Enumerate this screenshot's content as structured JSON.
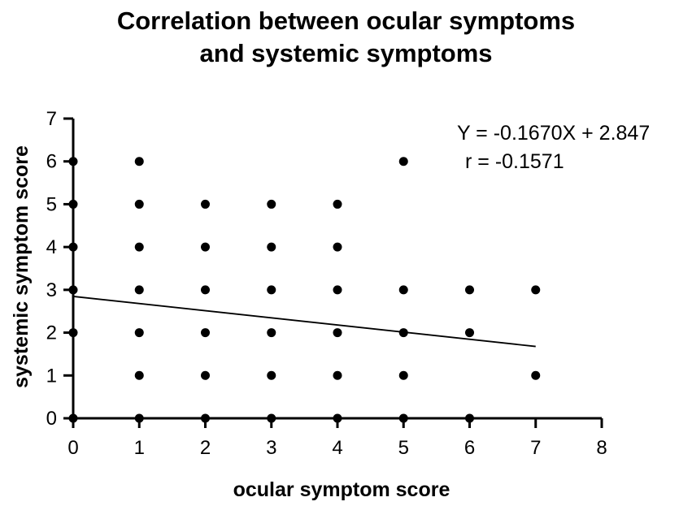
{
  "chart_data": {
    "type": "scatter",
    "title_lines": [
      "Correlation between ocular symptoms",
      "and systemic symptoms"
    ],
    "xlabel": "ocular  symptom score",
    "ylabel": "systemic symptom score",
    "xlim": [
      0,
      8
    ],
    "ylim": [
      0,
      7
    ],
    "xticks": [
      "0",
      "1",
      "2",
      "3",
      "4",
      "5",
      "6",
      "7",
      "8"
    ],
    "yticks": [
      "0",
      "1",
      "2",
      "3",
      "4",
      "5",
      "6",
      "7"
    ],
    "grid": false,
    "points": [
      {
        "x": 0,
        "y": 0
      },
      {
        "x": 0,
        "y": 2
      },
      {
        "x": 0,
        "y": 3
      },
      {
        "x": 0,
        "y": 4
      },
      {
        "x": 0,
        "y": 5
      },
      {
        "x": 0,
        "y": 6
      },
      {
        "x": 1,
        "y": 0
      },
      {
        "x": 1,
        "y": 1
      },
      {
        "x": 1,
        "y": 2
      },
      {
        "x": 1,
        "y": 3
      },
      {
        "x": 1,
        "y": 4
      },
      {
        "x": 1,
        "y": 5
      },
      {
        "x": 1,
        "y": 6
      },
      {
        "x": 2,
        "y": 0
      },
      {
        "x": 2,
        "y": 1
      },
      {
        "x": 2,
        "y": 2
      },
      {
        "x": 2,
        "y": 3
      },
      {
        "x": 2,
        "y": 4
      },
      {
        "x": 2,
        "y": 5
      },
      {
        "x": 3,
        "y": 0
      },
      {
        "x": 3,
        "y": 1
      },
      {
        "x": 3,
        "y": 2
      },
      {
        "x": 3,
        "y": 3
      },
      {
        "x": 3,
        "y": 4
      },
      {
        "x": 3,
        "y": 5
      },
      {
        "x": 4,
        "y": 0
      },
      {
        "x": 4,
        "y": 1
      },
      {
        "x": 4,
        "y": 2
      },
      {
        "x": 4,
        "y": 3
      },
      {
        "x": 4,
        "y": 4
      },
      {
        "x": 4,
        "y": 5
      },
      {
        "x": 5,
        "y": 0
      },
      {
        "x": 5,
        "y": 1
      },
      {
        "x": 5,
        "y": 2
      },
      {
        "x": 5,
        "y": 3
      },
      {
        "x": 5,
        "y": 6
      },
      {
        "x": 6,
        "y": 0
      },
      {
        "x": 6,
        "y": 2
      },
      {
        "x": 6,
        "y": 3
      },
      {
        "x": 7,
        "y": 1
      },
      {
        "x": 7,
        "y": 3
      }
    ],
    "regression": {
      "slope": -0.167,
      "intercept": 2.847,
      "x_range": [
        0,
        7
      ],
      "equation": "Y = -0.1670X + 2.847",
      "r_text": "r = -0.1571"
    }
  }
}
